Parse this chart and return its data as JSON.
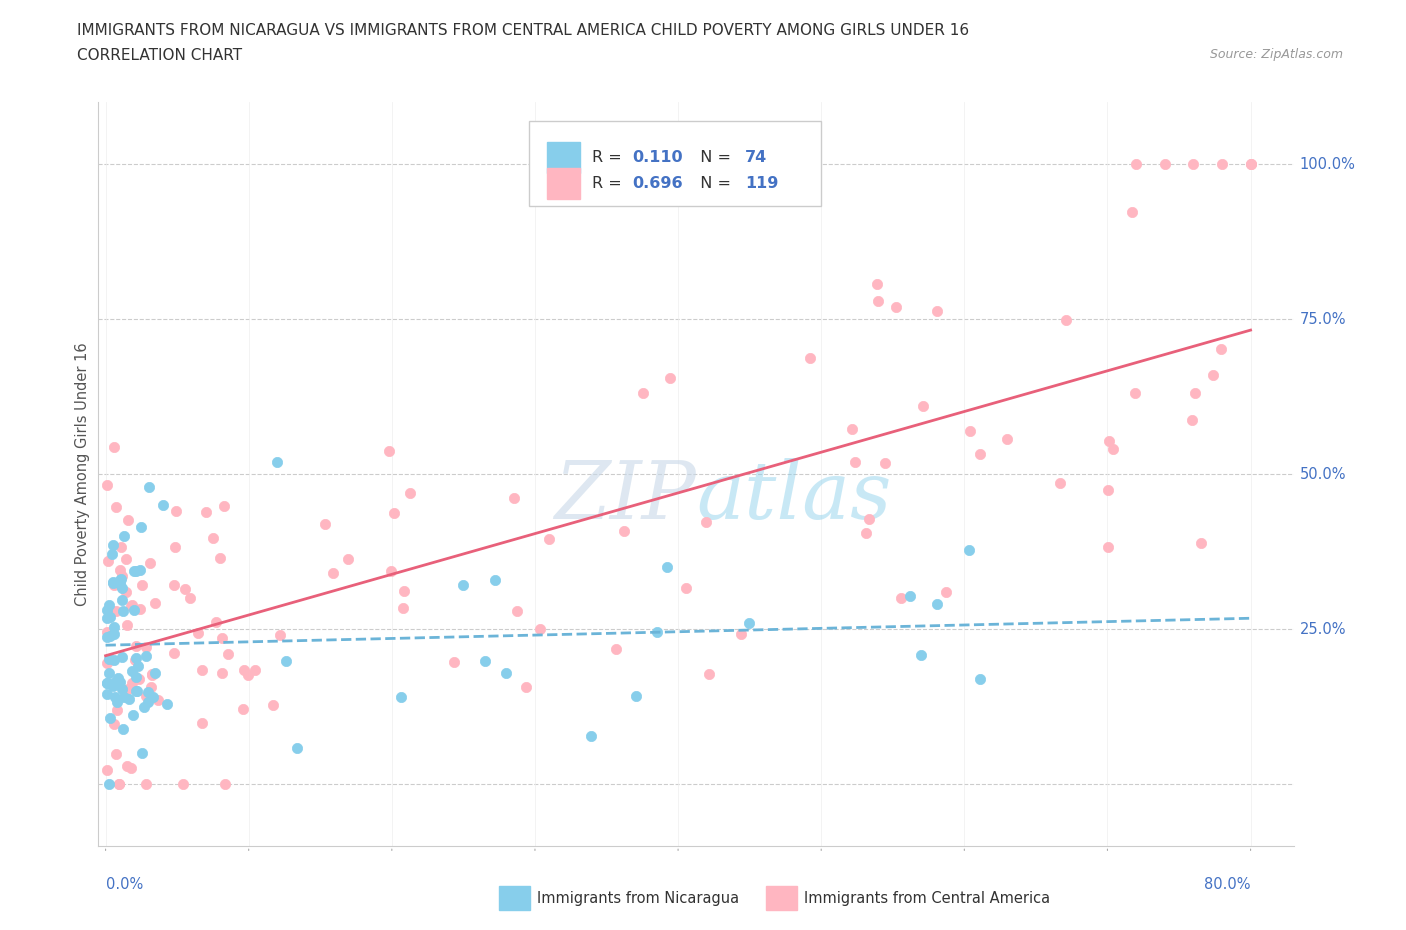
{
  "title_line1": "IMMIGRANTS FROM NICARAGUA VS IMMIGRANTS FROM CENTRAL AMERICA CHILD POVERTY AMONG GIRLS UNDER 16",
  "title_line2": "CORRELATION CHART",
  "source": "Source: ZipAtlas.com",
  "ylabel": "Child Poverty Among Girls Under 16",
  "color_nicaragua": "#6BAED6",
  "color_central_america": "#FB9A99",
  "line_color_nicaragua": "#4292C6",
  "line_color_central_america": "#E31A1C",
  "watermark_color": "#C8D8E8",
  "r_nicaragua": 0.11,
  "n_nicaragua": 74,
  "r_central_america": 0.696,
  "n_central_america": 119,
  "seed": 12345
}
